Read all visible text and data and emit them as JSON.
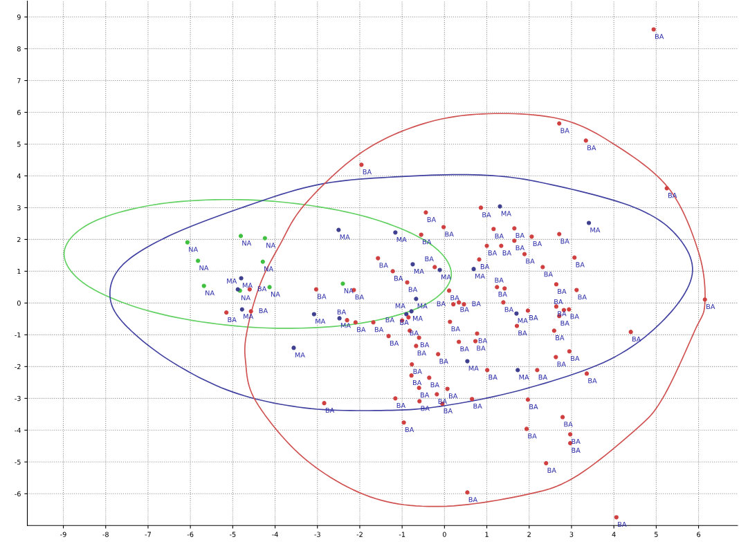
{
  "chart_data": {
    "type": "scatter",
    "xlim": [
      -9.85,
      6.92
    ],
    "ylim": [
      -7.0,
      9.5
    ],
    "xticks": [
      -9,
      -8,
      -7,
      -6,
      -5,
      -4,
      -3,
      -2,
      -1,
      0,
      1,
      2,
      3,
      4,
      5,
      6
    ],
    "yticks": [
      -6,
      -5,
      -4,
      -3,
      -2,
      -1,
      0,
      1,
      2,
      3,
      4,
      5,
      6,
      7,
      8,
      9
    ],
    "grid": true,
    "line_style": "dotted",
    "series": [
      {
        "name": "NA",
        "marker": "circle",
        "color": "#40c040",
        "x": [
          -6.07,
          -5.82,
          -5.68,
          -4.81,
          -4.24,
          -4.29,
          -4.13,
          -2.4,
          -4.83
        ],
        "values": [
          1.91,
          1.33,
          0.54,
          2.11,
          2.04,
          1.3,
          0.5,
          0.61,
          0.39
        ]
      },
      {
        "name": "MA",
        "marker": "circle",
        "color": "#404090",
        "x": [
          -4.8,
          -4.88,
          -4.78,
          -2.5,
          -1.16,
          -3.08,
          -3.56,
          -2.48,
          -0.75,
          0.69,
          1.31,
          3.41,
          -0.67,
          -0.78,
          0.54,
          1.73,
          1.7,
          -0.11,
          -0.9
        ],
        "values": [
          0.78,
          0.43,
          -0.2,
          2.3,
          2.22,
          -0.35,
          -1.41,
          -0.48,
          1.22,
          1.07,
          3.04,
          2.52,
          0.13,
          -0.26,
          -1.83,
          -2.11,
          -0.33,
          1.04,
          -0.35
        ]
      },
      {
        "name": "BA",
        "marker": "circle",
        "color": "#d04040",
        "x": [
          -4.6,
          -4.57,
          -5.15,
          4.94,
          2.71,
          3.34,
          5.25,
          6.15,
          4.4,
          -1.96,
          -0.44,
          -0.02,
          -0.55,
          0.86,
          1.16,
          1.65,
          2.06,
          2.71,
          1.0,
          1.34,
          1.65,
          1.89,
          2.32,
          3.07,
          0.82,
          1.24,
          1.42,
          2.64,
          3.12,
          0.11,
          -0.88,
          -1.22,
          -1.57,
          -3.03,
          -2.14,
          0.34,
          0.46,
          0.21,
          1.39,
          1.97,
          2.64,
          2.82,
          2.94,
          2.71,
          0.13,
          0.34,
          0.73,
          0.77,
          2.59,
          -0.6,
          -0.82,
          -0.67,
          -1.32,
          -1.68,
          -2.1,
          -2.3,
          -0.15,
          -0.77,
          -0.78,
          -0.36,
          -0.6,
          0.07,
          -0.18,
          -0.59,
          -0.05,
          -1.16,
          0.65,
          1.01,
          2.19,
          2.63,
          2.95,
          3.36,
          -2.84,
          -0.96,
          1.97,
          2.79,
          1.94,
          2.97,
          2.97,
          2.4,
          0.54,
          4.06,
          1.71,
          -0.23,
          -1.0,
          -0.85
        ],
        "values": [
          0.43,
          -0.26,
          -0.3,
          8.61,
          5.65,
          5.11,
          3.61,
          0.11,
          -0.91,
          4.35,
          2.85,
          2.39,
          2.15,
          3.0,
          2.33,
          2.35,
          2.09,
          2.17,
          1.8,
          1.8,
          1.96,
          1.54,
          1.13,
          1.43,
          1.37,
          0.5,
          0.46,
          0.59,
          0.41,
          0.39,
          0.65,
          1.0,
          1.41,
          0.43,
          0.41,
          0.02,
          -0.04,
          -0.04,
          0.02,
          -0.24,
          -0.11,
          -0.22,
          -0.2,
          -0.41,
          -0.59,
          -1.22,
          -1.2,
          -0.96,
          -0.87,
          -1.09,
          -0.87,
          -1.35,
          -1.04,
          -0.61,
          -0.61,
          -0.54,
          -1.61,
          -1.93,
          -2.28,
          -2.35,
          -2.67,
          -2.7,
          -2.87,
          -3.09,
          -3.17,
          -3.0,
          -3.02,
          -2.11,
          -2.11,
          -1.7,
          -1.52,
          -2.22,
          -3.15,
          -3.76,
          -3.04,
          -3.59,
          -3.96,
          -4.13,
          -4.41,
          -5.04,
          -5.96,
          -6.74,
          -0.72,
          1.13,
          -0.55,
          -0.45
        ]
      }
    ]
  }
}
